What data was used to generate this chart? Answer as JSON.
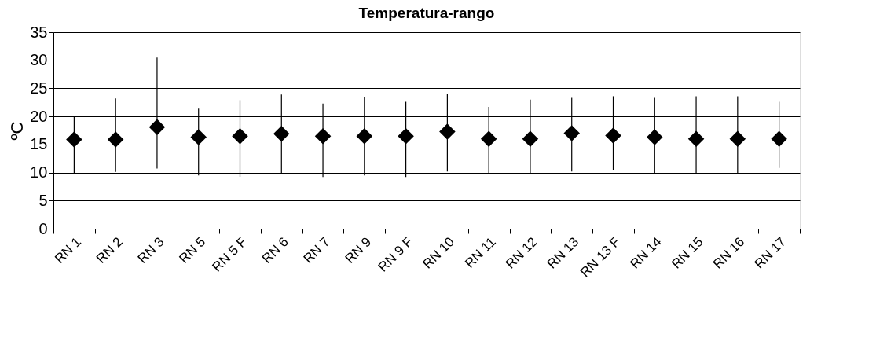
{
  "chart_data": {
    "type": "scatter",
    "title": "Temperatura-rango",
    "ylabel": "ºC",
    "categories": [
      "RN 1",
      "RN 2",
      "RN 3",
      "RN 5",
      "RN 5 F",
      "RN 6",
      "RN 7",
      "RN 9",
      "RN 9 F",
      "RN 10",
      "RN 11",
      "RN 12",
      "RN 13",
      "RN 13 F",
      "RN 14",
      "RN 15",
      "RN 16",
      "RN 17"
    ],
    "series": [
      {
        "color": "#000000",
        "values": [
          15.9,
          15.9,
          18.1,
          16.3,
          16.5,
          16.9,
          16.5,
          16.5,
          16.5,
          17.3,
          16.0,
          16.0,
          17.0,
          16.6,
          16.3,
          16.0,
          16.0,
          16.0
        ],
        "errors": [
          [
            9.9,
            20.0
          ],
          [
            10.1,
            23.2
          ],
          [
            10.7,
            30.5
          ],
          [
            9.5,
            21.4
          ],
          [
            9.2,
            22.9
          ],
          [
            9.9,
            23.9
          ],
          [
            9.2,
            22.3
          ],
          [
            9.5,
            23.5
          ],
          [
            9.2,
            22.6
          ],
          [
            10.2,
            24.0
          ],
          [
            9.9,
            21.7
          ],
          [
            9.9,
            23.0
          ],
          [
            10.2,
            23.3
          ],
          [
            10.5,
            23.6
          ],
          [
            9.9,
            23.3
          ],
          [
            9.9,
            23.6
          ],
          [
            9.9,
            23.6
          ],
          [
            10.8,
            22.6
          ]
        ]
      }
    ],
    "ylim": [
      0,
      35
    ],
    "yticks": [
      0,
      5,
      10,
      15,
      20,
      25,
      30,
      35
    ],
    "grid": "y",
    "marker": "diamond"
  }
}
